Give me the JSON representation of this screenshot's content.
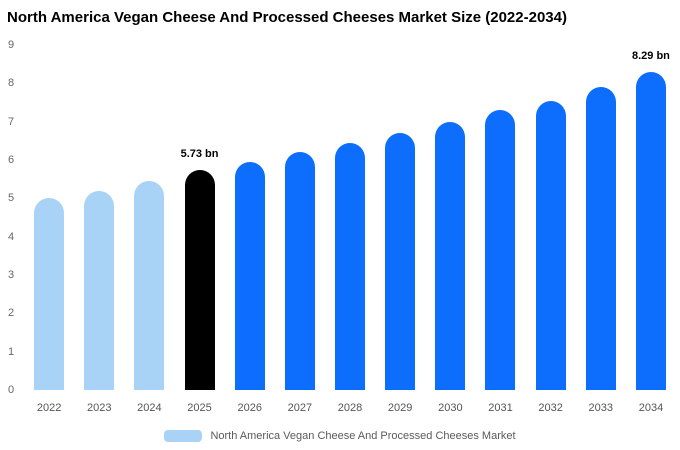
{
  "chart_data": {
    "type": "bar",
    "title": "North America Vegan Cheese And Processed Cheeses Market Size (2022-2034)",
    "categories": [
      "2022",
      "2023",
      "2024",
      "2025",
      "2026",
      "2027",
      "2028",
      "2029",
      "2030",
      "2031",
      "2032",
      "2033",
      "2034"
    ],
    "values": [
      5.0,
      5.2,
      5.45,
      5.73,
      5.95,
      6.2,
      6.45,
      6.7,
      7.0,
      7.3,
      7.55,
      7.9,
      8.29
    ],
    "unit": "bn",
    "ylabel": "",
    "xlabel": "",
    "ylim": [
      0,
      9
    ],
    "ytick_step": 1,
    "grid": false,
    "bar_colors": [
      "#a9d2f7",
      "#a9d2f7",
      "#a9d2f7",
      "#000000",
      "#0d6efd",
      "#0d6efd",
      "#0d6efd",
      "#0d6efd",
      "#0d6efd",
      "#0d6efd",
      "#0d6efd",
      "#0d6efd",
      "#0d6efd"
    ],
    "colors": {
      "historical": "#a9d2f7",
      "highlight": "#000000",
      "forecast": "#0d6efd"
    },
    "annotations": [
      {
        "category": "2025",
        "text": "5.73 bn"
      },
      {
        "category": "2034",
        "text": "8.29 bn"
      }
    ],
    "legend": {
      "label": "North America Vegan Cheese And Processed Cheeses Market",
      "swatch_color": "#a9d2f7",
      "position": "bottom"
    }
  }
}
